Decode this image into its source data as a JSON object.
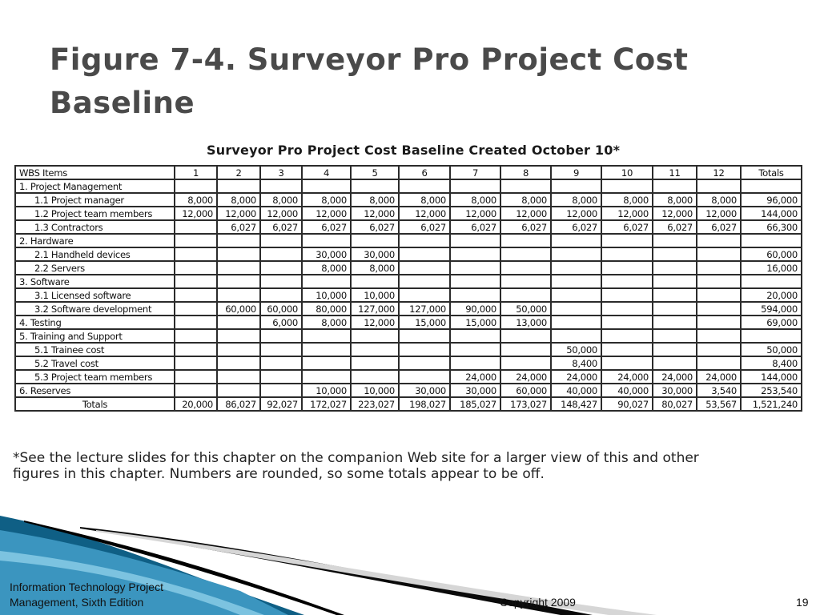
{
  "slide": {
    "title_line1": "Figure 7-4. Surveyor Pro Project Cost",
    "title_line2": "Baseline",
    "figure_title": "Surveyor Pro Project Cost Baseline Created October 10*",
    "footnote_line1": "*See the lecture slides for this chapter on the companion Web site for a larger view of this and other",
    "footnote_line2": "figures in this chapter. Numbers are rounded, so some totals appear to be off."
  },
  "table": {
    "headers": [
      "WBS Items",
      "1",
      "2",
      "3",
      "4",
      "5",
      "6",
      "7",
      "8",
      "9",
      "10",
      "11",
      "12",
      "Totals"
    ],
    "rows": [
      {
        "label": "1.   Project Management",
        "indent": false,
        "cells": [
          "",
          "",
          "",
          "",
          "",
          "",
          "",
          "",
          "",
          "",
          "",
          "",
          ""
        ]
      },
      {
        "label": "1.1 Project manager",
        "indent": true,
        "cells": [
          "8,000",
          "8,000",
          "8,000",
          "8,000",
          "8,000",
          "8,000",
          "8,000",
          "8,000",
          "8,000",
          "8,000",
          "8,000",
          "8,000",
          "96,000"
        ]
      },
      {
        "label": "1.2 Project team members",
        "indent": true,
        "cells": [
          "12,000",
          "12,000",
          "12,000",
          "12,000",
          "12,000",
          "12,000",
          "12,000",
          "12,000",
          "12,000",
          "12,000",
          "12,000",
          "12,000",
          "144,000"
        ]
      },
      {
        "label": "1.3 Contractors",
        "indent": true,
        "cells": [
          "",
          "6,027",
          "6,027",
          "6,027",
          "6,027",
          "6,027",
          "6,027",
          "6,027",
          "6,027",
          "6,027",
          "6,027",
          "6,027",
          "66,300"
        ]
      },
      {
        "label": "2. Hardware",
        "indent": false,
        "cells": [
          "",
          "",
          "",
          "",
          "",
          "",
          "",
          "",
          "",
          "",
          "",
          "",
          ""
        ]
      },
      {
        "label": "2.1 Handheld devices",
        "indent": true,
        "cells": [
          "",
          "",
          "",
          "30,000",
          "30,000",
          "",
          "",
          "",
          "",
          "",
          "",
          "",
          "60,000"
        ]
      },
      {
        "label": "2.2 Servers",
        "indent": true,
        "cells": [
          "",
          "",
          "",
          "8,000",
          "8,000",
          "",
          "",
          "",
          "",
          "",
          "",
          "",
          "16,000"
        ]
      },
      {
        "label": "3. Software",
        "indent": false,
        "cells": [
          "",
          "",
          "",
          "",
          "",
          "",
          "",
          "",
          "",
          "",
          "",
          "",
          ""
        ]
      },
      {
        "label": "3.1 Licensed software",
        "indent": true,
        "cells": [
          "",
          "",
          "",
          "10,000",
          "10,000",
          "",
          "",
          "",
          "",
          "",
          "",
          "",
          "20,000"
        ]
      },
      {
        "label": "3.2 Software development",
        "indent": true,
        "cells": [
          "",
          "60,000",
          "60,000",
          "80,000",
          "127,000",
          "127,000",
          "90,000",
          "50,000",
          "",
          "",
          "",
          "",
          "594,000"
        ]
      },
      {
        "label": "4. Testing",
        "indent": false,
        "cells": [
          "",
          "",
          "6,000",
          "8,000",
          "12,000",
          "15,000",
          "15,000",
          "13,000",
          "",
          "",
          "",
          "",
          "69,000"
        ]
      },
      {
        "label": "5. Training and Support",
        "indent": false,
        "cells": [
          "",
          "",
          "",
          "",
          "",
          "",
          "",
          "",
          "",
          "",
          "",
          "",
          ""
        ]
      },
      {
        "label": "5.1 Trainee cost",
        "indent": true,
        "cells": [
          "",
          "",
          "",
          "",
          "",
          "",
          "",
          "",
          "50,000",
          "",
          "",
          "",
          "50,000"
        ]
      },
      {
        "label": "5.2 Travel cost",
        "indent": true,
        "cells": [
          "",
          "",
          "",
          "",
          "",
          "",
          "",
          "",
          "8,400",
          "",
          "",
          "",
          "8,400"
        ]
      },
      {
        "label": "5.3 Project team members",
        "indent": true,
        "cells": [
          "",
          "",
          "",
          "",
          "",
          "",
          "24,000",
          "24,000",
          "24,000",
          "24,000",
          "24,000",
          "24,000",
          "144,000"
        ]
      },
      {
        "label": "6. Reserves",
        "indent": false,
        "cells": [
          "",
          "",
          "",
          "10,000",
          "10,000",
          "30,000",
          "30,000",
          "60,000",
          "40,000",
          "40,000",
          "30,000",
          "3,540",
          "253,540"
        ]
      },
      {
        "label": "Totals",
        "indent": false,
        "total": true,
        "cells": [
          "20,000",
          "86,027",
          "92,027",
          "172,027",
          "223,027",
          "198,027",
          "185,027",
          "173,027",
          "148,427",
          "90,027",
          "80,027",
          "53,567",
          "1,521,240"
        ]
      }
    ]
  },
  "footer": {
    "book_line1": "Information Technology Project",
    "book_line2": "Management, Sixth Edition",
    "copyright": "Copyright 2009",
    "page_number": "19"
  },
  "colors": {
    "title_gray": "#4a4a4a",
    "swoosh_dark": "#0f5f85",
    "swoosh_light": "#4aa8cf",
    "swoosh_black": "#000000"
  }
}
